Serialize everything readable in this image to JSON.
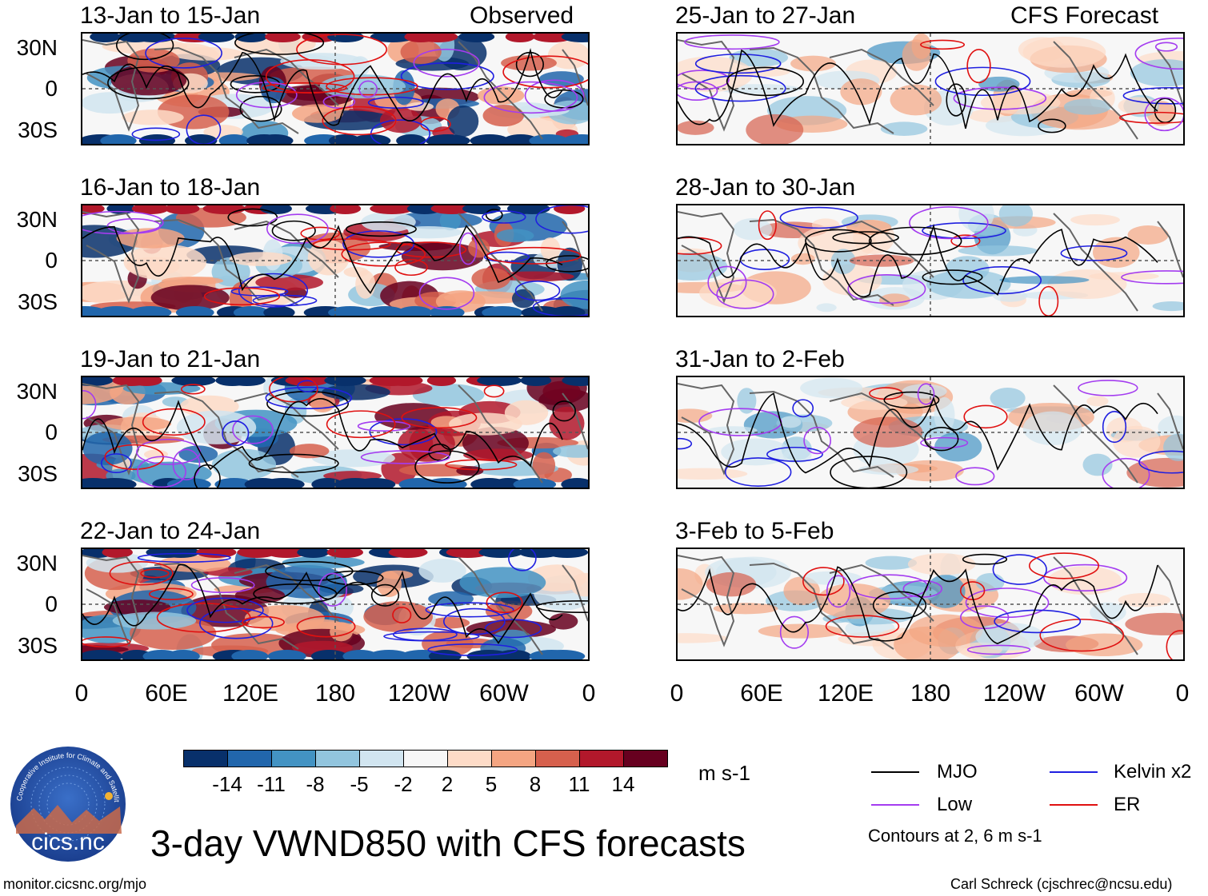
{
  "figure": {
    "main_title": "3-day VWND850 with CFS forecasts",
    "observed_label": "Observed",
    "forecast_label": "CFS Forecast",
    "url": "monitor.cicsnc.org/mjo",
    "credit": "Carl Schreck (cjschrec@ncsu.edu)",
    "units": "m s-1",
    "logo_text": "cics.nc",
    "logo_ring_text": "Cooperative Institute for Climate and Satellites"
  },
  "panels": {
    "observed": [
      {
        "title": "13-Jan to 15-Jan"
      },
      {
        "title": "16-Jan to 18-Jan"
      },
      {
        "title": "19-Jan to 21-Jan"
      },
      {
        "title": "22-Jan to 24-Jan"
      }
    ],
    "forecast": [
      {
        "title": "25-Jan to 27-Jan"
      },
      {
        "title": "28-Jan to 30-Jan"
      },
      {
        "title": "31-Jan to 2-Feb"
      },
      {
        "title": "3-Feb to 5-Feb"
      }
    ]
  },
  "axes": {
    "lat_labels": [
      "30N",
      "0",
      "30S"
    ],
    "lon_labels": [
      "0",
      "60E",
      "120E",
      "180",
      "120W",
      "60W",
      "0"
    ]
  },
  "colorbar": {
    "labels": [
      "-14",
      "-11",
      "-8",
      "-5",
      "-2",
      "2",
      "5",
      "8",
      "11",
      "14"
    ],
    "colors": [
      "#08306b",
      "#2166ac",
      "#4393c3",
      "#92c5de",
      "#d1e5f0",
      "#f7f7f7",
      "#fddbc7",
      "#f4a582",
      "#d6604d",
      "#b2182b",
      "#67001f"
    ]
  },
  "legend": {
    "items": [
      {
        "label": "MJO",
        "color": "#000000"
      },
      {
        "label": "Kelvin x2",
        "color": "#1f1fe0"
      },
      {
        "label": "Low",
        "color": "#a43cf0"
      },
      {
        "label": "ER",
        "color": "#e01010"
      }
    ],
    "note": "Contours at 2, 6 m s-1"
  }
}
